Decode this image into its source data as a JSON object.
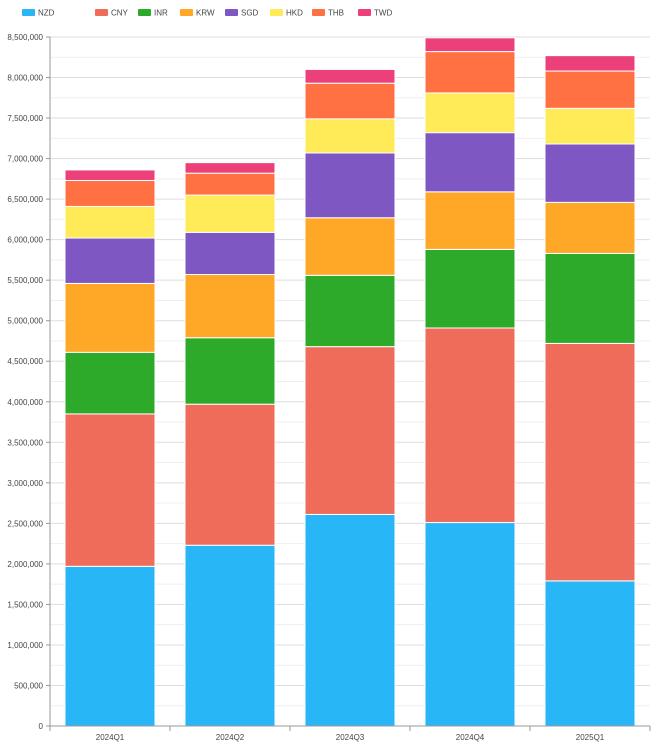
{
  "chart_data": {
    "type": "bar",
    "stacked": true,
    "categories": [
      "2024Q1",
      "2024Q2",
      "2024Q3",
      "2024Q4",
      "2025Q1"
    ],
    "series": [
      {
        "name": "NZD",
        "color": "#29b6f6",
        "values": [
          1970000,
          2230000,
          2610000,
          2510000,
          1790000
        ]
      },
      {
        "name": "CNY",
        "color": "#ef6c5a",
        "values": [
          1880000,
          1740000,
          2070000,
          2400000,
          2930000
        ]
      },
      {
        "name": "INR",
        "color": "#2eaa2a",
        "values": [
          760000,
          820000,
          880000,
          970000,
          1110000
        ]
      },
      {
        "name": "KRW",
        "color": "#ffa726",
        "values": [
          850000,
          780000,
          710000,
          710000,
          630000
        ]
      },
      {
        "name": "SGD",
        "color": "#7e57c2",
        "values": [
          560000,
          520000,
          800000,
          730000,
          720000
        ]
      },
      {
        "name": "HKD",
        "color": "#ffeb57",
        "values": [
          390000,
          460000,
          420000,
          490000,
          440000
        ]
      },
      {
        "name": "THB",
        "color": "#ff7043",
        "values": [
          320000,
          270000,
          440000,
          510000,
          460000
        ]
      },
      {
        "name": "TWD",
        "color": "#ec407a",
        "values": [
          130000,
          130000,
          170000,
          170000,
          190000
        ]
      }
    ],
    "ylim": [
      0,
      8500000
    ],
    "yticks": [
      0,
      500000,
      1000000,
      1500000,
      2000000,
      2500000,
      3000000,
      3500000,
      4000000,
      4500000,
      5000000,
      5500000,
      6000000,
      6500000,
      7000000,
      7500000,
      8000000,
      8500000
    ],
    "ytick_labels": [
      "0",
      "500,000",
      "1,000,000",
      "1,500,000",
      "2,000,000",
      "2,500,000",
      "3,000,000",
      "3,500,000",
      "4,000,000",
      "4,500,000",
      "5,000,000",
      "5,500,000",
      "6,000,000",
      "6,500,000",
      "7,000,000",
      "7,500,000",
      "8,000,000",
      "8,500,000"
    ],
    "grid": true,
    "legend_position": "top-left",
    "title": "",
    "xlabel": "",
    "ylabel": ""
  }
}
